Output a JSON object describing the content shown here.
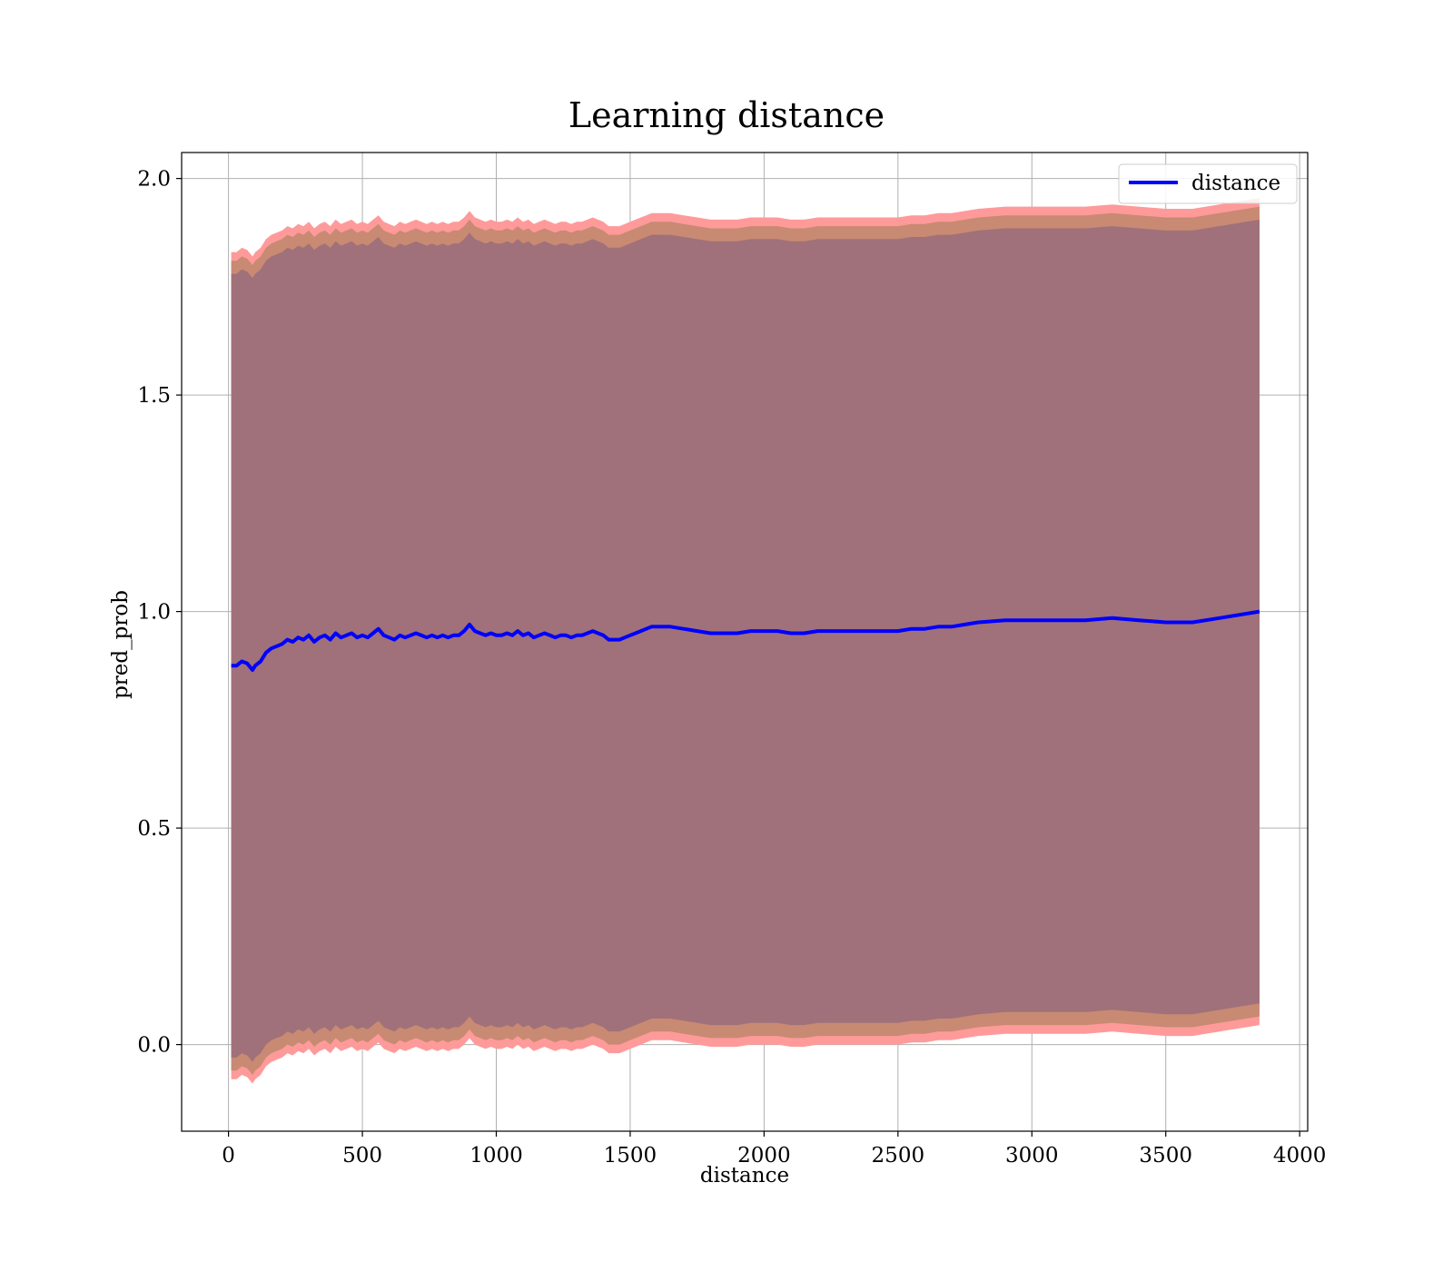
{
  "chart_data": {
    "type": "line",
    "title": "Learning distance",
    "xlabel": "distance",
    "ylabel": "pred_prob",
    "xlim": [
      -175,
      4030
    ],
    "ylim": [
      -0.2,
      2.06
    ],
    "x_ticks": [
      0,
      500,
      1000,
      1500,
      2000,
      2500,
      3000,
      3500,
      4000
    ],
    "x_tick_labels": [
      "0",
      "500",
      "1000",
      "1500",
      "2000",
      "2500",
      "3000",
      "3500",
      "4000"
    ],
    "y_ticks": [
      0.0,
      0.5,
      1.0,
      1.5,
      2.0
    ],
    "y_tick_labels": [
      "0.0",
      "0.5",
      "1.0",
      "1.5",
      "2.0"
    ],
    "grid": true,
    "legend": {
      "position": "top-right",
      "entries": [
        "distance"
      ]
    },
    "colors": {
      "line": "#0000ff",
      "band_outer": "#ff9a9a",
      "band_middle": "#c88a72",
      "band_inner": "#a0717a",
      "grid": "#b0b0b0"
    },
    "series": [
      {
        "name": "distance",
        "x": [
          10,
          30,
          50,
          70,
          90,
          100,
          120,
          140,
          160,
          180,
          200,
          220,
          240,
          260,
          280,
          300,
          320,
          340,
          360,
          380,
          400,
          420,
          440,
          460,
          480,
          500,
          520,
          540,
          560,
          580,
          600,
          620,
          640,
          660,
          680,
          700,
          720,
          740,
          760,
          780,
          800,
          820,
          840,
          860,
          880,
          900,
          920,
          940,
          960,
          980,
          1000,
          1020,
          1040,
          1060,
          1080,
          1100,
          1120,
          1140,
          1160,
          1180,
          1200,
          1220,
          1240,
          1260,
          1280,
          1300,
          1320,
          1340,
          1360,
          1380,
          1400,
          1420,
          1440,
          1460,
          1480,
          1500,
          1520,
          1540,
          1560,
          1580,
          1600,
          1650,
          1700,
          1750,
          1800,
          1850,
          1900,
          1950,
          2000,
          2050,
          2100,
          2150,
          2200,
          2250,
          2300,
          2350,
          2400,
          2450,
          2500,
          2550,
          2600,
          2650,
          2700,
          2750,
          2800,
          2900,
          3000,
          3050,
          3100,
          3200,
          3300,
          3400,
          3500,
          3600,
          3700,
          3850
        ],
        "values": [
          0.875,
          0.875,
          0.885,
          0.88,
          0.865,
          0.875,
          0.885,
          0.905,
          0.915,
          0.92,
          0.925,
          0.935,
          0.93,
          0.94,
          0.935,
          0.945,
          0.93,
          0.94,
          0.945,
          0.935,
          0.95,
          0.94,
          0.945,
          0.95,
          0.94,
          0.945,
          0.94,
          0.95,
          0.96,
          0.945,
          0.94,
          0.935,
          0.945,
          0.94,
          0.945,
          0.95,
          0.945,
          0.94,
          0.945,
          0.94,
          0.945,
          0.94,
          0.945,
          0.945,
          0.955,
          0.97,
          0.955,
          0.95,
          0.945,
          0.95,
          0.945,
          0.945,
          0.95,
          0.945,
          0.955,
          0.945,
          0.95,
          0.94,
          0.945,
          0.95,
          0.945,
          0.94,
          0.945,
          0.945,
          0.94,
          0.945,
          0.945,
          0.95,
          0.955,
          0.95,
          0.945,
          0.935,
          0.935,
          0.935,
          0.94,
          0.945,
          0.95,
          0.955,
          0.96,
          0.965,
          0.965,
          0.965,
          0.96,
          0.955,
          0.95,
          0.95,
          0.95,
          0.955,
          0.955,
          0.955,
          0.95,
          0.95,
          0.955,
          0.955,
          0.955,
          0.955,
          0.955,
          0.955,
          0.955,
          0.96,
          0.96,
          0.965,
          0.965,
          0.97,
          0.975,
          0.98,
          0.98,
          0.98,
          0.98,
          0.98,
          0.985,
          0.98,
          0.975,
          0.975,
          0.985,
          1.0
        ]
      }
    ],
    "bands": {
      "outer_offset": 0.955,
      "middle_offset": 0.935,
      "inner_offset": 0.905
    }
  }
}
